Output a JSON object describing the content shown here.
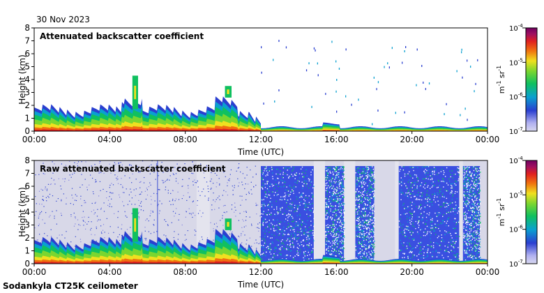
{
  "date": "30 Nov 2023",
  "footer": "Sodankyla CT25K ceilometer",
  "colorbar": {
    "tick_labels": [
      "10-7",
      "10-6",
      "10-5",
      "10-4"
    ],
    "tick_base": "10",
    "tick_exponents": [
      "-7",
      "-6",
      "-5",
      "-4"
    ],
    "unit_m": "m",
    "unit_m_exp": "-1",
    "unit_sr": "sr",
    "unit_sr_exp": "-1",
    "colors": [
      "#d8d8f0",
      "#2a3fd0",
      "#0aa0d0",
      "#10c060",
      "#7ad630",
      "#f0e020",
      "#f07010",
      "#e02020",
      "#a01060",
      "#700060"
    ]
  },
  "chart_data": [
    {
      "type": "heatmap",
      "title": "Attenuated backscatter coefficient",
      "xlabel": "Time (UTC)",
      "ylabel": "Height (km)",
      "xlim": [
        0,
        24
      ],
      "ylim": [
        0,
        8
      ],
      "x_ticks": [
        0,
        4,
        8,
        12,
        16,
        20,
        24
      ],
      "x_tick_labels": [
        "00:00",
        "04:00",
        "08:00",
        "12:00",
        "16:00",
        "20:00",
        "00:00"
      ],
      "y_ticks": [
        0,
        1,
        2,
        3,
        4,
        5,
        6,
        7,
        8
      ],
      "y_tick_labels": [
        "0",
        "1",
        "2",
        "3",
        "4",
        "5",
        "6",
        "7",
        "8"
      ],
      "colorbar_range": [
        1e-07,
        0.0001
      ]
    },
    {
      "type": "heatmap",
      "title": "Raw attenuated backscatter coefficient",
      "xlabel": "Time (UTC)",
      "ylabel": "Height (km)",
      "xlim": [
        0,
        24
      ],
      "ylim": [
        0,
        8
      ],
      "x_ticks": [
        0,
        4,
        8,
        12,
        16,
        20,
        24
      ],
      "x_tick_labels": [
        "00:00",
        "04:00",
        "08:00",
        "12:00",
        "16:00",
        "20:00",
        "00:00"
      ],
      "y_ticks": [
        0,
        1,
        2,
        3,
        4,
        5,
        6,
        7,
        8
      ],
      "y_tick_labels": [
        "0",
        "1",
        "2",
        "3",
        "4",
        "5",
        "6",
        "7",
        "8"
      ],
      "colorbar_range": [
        1e-07,
        0.0001
      ]
    }
  ]
}
